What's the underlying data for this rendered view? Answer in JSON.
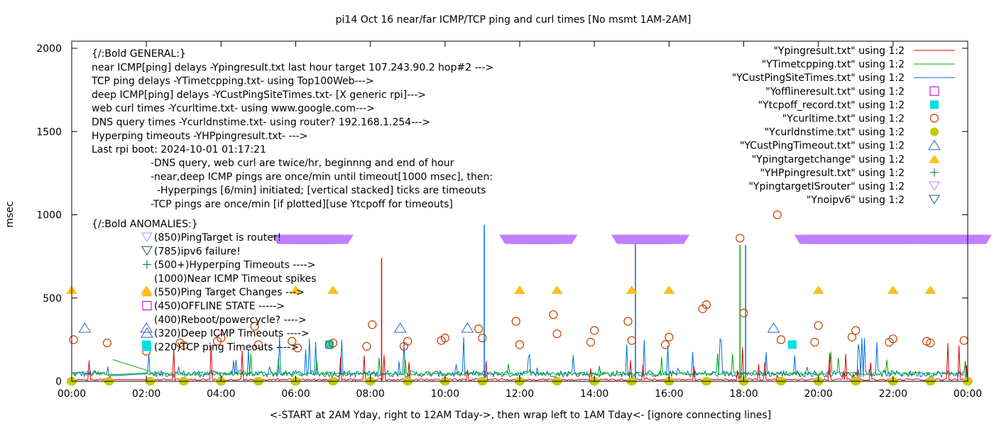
{
  "chart_data": {
    "type": "line",
    "title": "pi14 Oct 16  near/far ICMP/TCP ping and curl times [No msmt 1AM-2AM]",
    "xlabel": "<-START at 2AM Yday, right to 12AM Tday->, then wrap left to 1AM Tday<- [ignore connecting lines]",
    "ylabel": "msec",
    "xlim_hours": [
      0,
      24
    ],
    "ylim": [
      0,
      2050
    ],
    "grid": false,
    "legend_position": "top-right",
    "x_ticks": [
      "00:00",
      "02:00",
      "04:00",
      "06:00",
      "08:00",
      "10:00",
      "12:00",
      "14:00",
      "16:00",
      "18:00",
      "20:00",
      "22:00",
      "00:00"
    ],
    "y_ticks": [
      0,
      500,
      1000,
      1500,
      2000
    ],
    "colors": {
      "ping": "#dd0000",
      "tcp": "#00aa00",
      "cust": "#0070e0",
      "offline": "#aa00cc",
      "tcpoff": "#00e0e0",
      "curl": "#c04000",
      "dns": "#c8c800",
      "custtimeout": "#3060d0",
      "targetchange": "#ffbf20",
      "hpping": "#006a30",
      "isrouter": "#c080ff",
      "noipv6": "#205070"
    },
    "legend": [
      {
        "label": "\"Ypingresult.txt\" using 1:2",
        "style": "line",
        "color_key": "ping"
      },
      {
        "label": "\"YTimetcpping.txt\" using 1:2",
        "style": "line",
        "color_key": "tcp"
      },
      {
        "label": "\"YCustPingSiteTimes.txt\" using 1:2",
        "style": "line",
        "color_key": "cust"
      },
      {
        "label": "\"Yofflineresult.txt\" using 1:2",
        "style": "open-square",
        "color_key": "offline"
      },
      {
        "label": "\"Ytcpoff_record.txt\" using 1:2",
        "style": "filled-square",
        "color_key": "tcpoff"
      },
      {
        "label": "\"Ycurltime.txt\" using 1:2",
        "style": "open-circle",
        "color_key": "curl"
      },
      {
        "label": "\"Ycurldnstime.txt\" using 1:2",
        "style": "filled-circle",
        "color_key": "dns"
      },
      {
        "label": "\"YCustPingTimeout.txt\" using 1:2",
        "style": "open-triangle",
        "color_key": "custtimeout"
      },
      {
        "label": "\"Ypingtargetchange\" using 1:2",
        "style": "filled-triangle",
        "color_key": "targetchange"
      },
      {
        "label": "\"YHPpingresult.txt\" using 1:2",
        "style": "plus",
        "color_key": "hpping"
      },
      {
        "label": "\"YpingtargetISrouter\" using 1:2",
        "style": "open-down-triangle",
        "color_key": "isrouter"
      },
      {
        "label": "\"Ynoipv6\" using 1:2",
        "style": "open-down-triangle",
        "color_key": "noipv6"
      }
    ],
    "annotations_general": [
      "{/:Bold GENERAL:}",
      "near ICMP[ping] delays -Ypingresult.txt last hour target 107.243.90.2 hop#2 --->",
      "TCP ping delays -YTimetcpping.txt- using Top100Web--->",
      "deep ICMP[ping] delays -YCustPingSiteTimes.txt- [X generic rpi]--->",
      "web curl times -Ycurltime.txt- using www.google.com--->",
      "DNS query times -Ycurldnstime.txt- using router? 192.168.1.254--->",
      "Hyperping timeouts -YHPpingresult.txt- --->",
      "Last rpi boot: 2024-10-01 01:17:21"
    ],
    "annotations_notes": [
      "-DNS query, web curl are twice/hr, beginnng and end of hour",
      "-near,deep ICMP pings are once/min until timeout[1000 msec], then:",
      "  -Hyperpings [6/min] initiated; [vertical stacked] ticks are timeouts",
      "-TCP pings are once/min [if plotted][use Ytcpoff for timeouts]"
    ],
    "annotations_anomalies_title": "{/:Bold ANOMALIES:}",
    "annotations_anomalies": [
      {
        "text": "(850)PingTarget is router!",
        "symbol": "open-down-triangle",
        "color_key": "isrouter"
      },
      {
        "text": "(785)ipv6 failure!",
        "symbol": "open-down-triangle",
        "color_key": "noipv6"
      },
      {
        "text": "(500+)Hyperping Timeouts ---->",
        "symbol": "plus",
        "color_key": "hpping"
      },
      {
        "text": "(1000)Near ICMP Timeout spikes",
        "symbol": "none",
        "color_key": ""
      },
      {
        "text": "(550)Ping Target Changes --->",
        "symbol": "filled-triangle",
        "color_key": "targetchange"
      },
      {
        "text": "(450)OFFLINE STATE ----->",
        "symbol": "open-square",
        "color_key": "offline"
      },
      {
        "text": "(400)Reboot/powercycle? ---->",
        "symbol": "none",
        "color_key": ""
      },
      {
        "text": "(320)Deep ICMP Timeouts ---->",
        "symbol": "open-triangle",
        "color_key": "custtimeout"
      },
      {
        "text": "(220)TCP ping Timeouts ---->",
        "symbol": "filled-square",
        "color_key": "tcpoff"
      }
    ],
    "series_points": {
      "isrouter_850": [
        6.0,
        6.1,
        6.2,
        6.3,
        6.4,
        6.5,
        6.6,
        6.7,
        6.9,
        12.1,
        12.2,
        12.3,
        12.4,
        12.5,
        12.6,
        12.7,
        12.9,
        15.1,
        15.2,
        15.3,
        15.4,
        15.5,
        15.6,
        15.7,
        15.9,
        20.0,
        20.2,
        20.4,
        20.6,
        20.8,
        21.0,
        21.2,
        21.4,
        21.6,
        21.8,
        22.0,
        22.2,
        23.0,
        23.2,
        23.4,
        23.6,
        23.8,
        24.0
      ],
      "targetchange_550": [
        0.0,
        2.0,
        6.0,
        7.0,
        12.0,
        13.0,
        15.0,
        16.0,
        20.0,
        22.0,
        23.0
      ],
      "custtimeout_320": [
        {
          "x": 0.35,
          "y": 320
        },
        {
          "x": 2.0,
          "y": 320
        },
        {
          "x": 8.8,
          "y": 320
        },
        {
          "x": 10.6,
          "y": 320
        },
        {
          "x": 18.8,
          "y": 320
        }
      ],
      "tcpoff_220": [
        {
          "x": 2.0,
          "y": 220
        },
        {
          "x": 6.9,
          "y": 220
        },
        {
          "x": 19.3,
          "y": 220
        }
      ],
      "curl": [
        {
          "x": 0.05,
          "y": 250
        },
        {
          "x": 0.95,
          "y": 230
        },
        {
          "x": 2.0,
          "y": 180
        },
        {
          "x": 2.9,
          "y": 230
        },
        {
          "x": 3.0,
          "y": 215
        },
        {
          "x": 3.9,
          "y": 240
        },
        {
          "x": 4.0,
          "y": 260
        },
        {
          "x": 4.9,
          "y": 330
        },
        {
          "x": 5.0,
          "y": 220
        },
        {
          "x": 5.9,
          "y": 240
        },
        {
          "x": 6.05,
          "y": 200
        },
        {
          "x": 6.9,
          "y": 220
        },
        {
          "x": 7.0,
          "y": 230
        },
        {
          "x": 7.9,
          "y": 210
        },
        {
          "x": 8.05,
          "y": 340
        },
        {
          "x": 8.9,
          "y": 210
        },
        {
          "x": 9.0,
          "y": 240
        },
        {
          "x": 9.9,
          "y": 245
        },
        {
          "x": 10.0,
          "y": 260
        },
        {
          "x": 10.9,
          "y": 315
        },
        {
          "x": 11.0,
          "y": 260
        },
        {
          "x": 11.9,
          "y": 360
        },
        {
          "x": 12.0,
          "y": 220
        },
        {
          "x": 12.9,
          "y": 400
        },
        {
          "x": 13.0,
          "y": 285
        },
        {
          "x": 13.9,
          "y": 235
        },
        {
          "x": 14.0,
          "y": 305
        },
        {
          "x": 14.9,
          "y": 360
        },
        {
          "x": 15.0,
          "y": 245
        },
        {
          "x": 15.9,
          "y": 220
        },
        {
          "x": 16.0,
          "y": 265
        },
        {
          "x": 16.9,
          "y": 435
        },
        {
          "x": 17.0,
          "y": 460
        },
        {
          "x": 17.9,
          "y": 860
        },
        {
          "x": 18.0,
          "y": 410
        },
        {
          "x": 18.9,
          "y": 1000
        },
        {
          "x": 19.0,
          "y": 250
        },
        {
          "x": 19.9,
          "y": 235
        },
        {
          "x": 20.0,
          "y": 335
        },
        {
          "x": 20.9,
          "y": 265
        },
        {
          "x": 21.0,
          "y": 305
        },
        {
          "x": 21.9,
          "y": 235
        },
        {
          "x": 22.0,
          "y": 255
        },
        {
          "x": 22.9,
          "y": 240
        },
        {
          "x": 23.0,
          "y": 230
        },
        {
          "x": 23.9,
          "y": 245
        }
      ],
      "dns_hours": [
        0,
        1,
        2.1,
        3,
        4,
        5,
        6,
        7,
        8,
        9,
        10,
        11,
        12,
        13,
        14,
        15,
        16,
        17,
        18,
        19,
        20,
        21,
        22,
        23,
        24
      ],
      "dns_y": 0,
      "ping_baseline_msec": 5,
      "tcp_baseline_msec": 35,
      "cust_baseline_msec": 25,
      "notable_spikes": [
        {
          "series": "cust",
          "x": 11.05,
          "y": 940
        },
        {
          "series": "ping",
          "x": 8.3,
          "y": 740
        },
        {
          "series": "cust",
          "x": 18.05,
          "y": 820
        },
        {
          "series": "tcp",
          "x": 17.9,
          "y": 820
        },
        {
          "series": "cust",
          "x": 15.1,
          "y": 840
        }
      ]
    }
  }
}
